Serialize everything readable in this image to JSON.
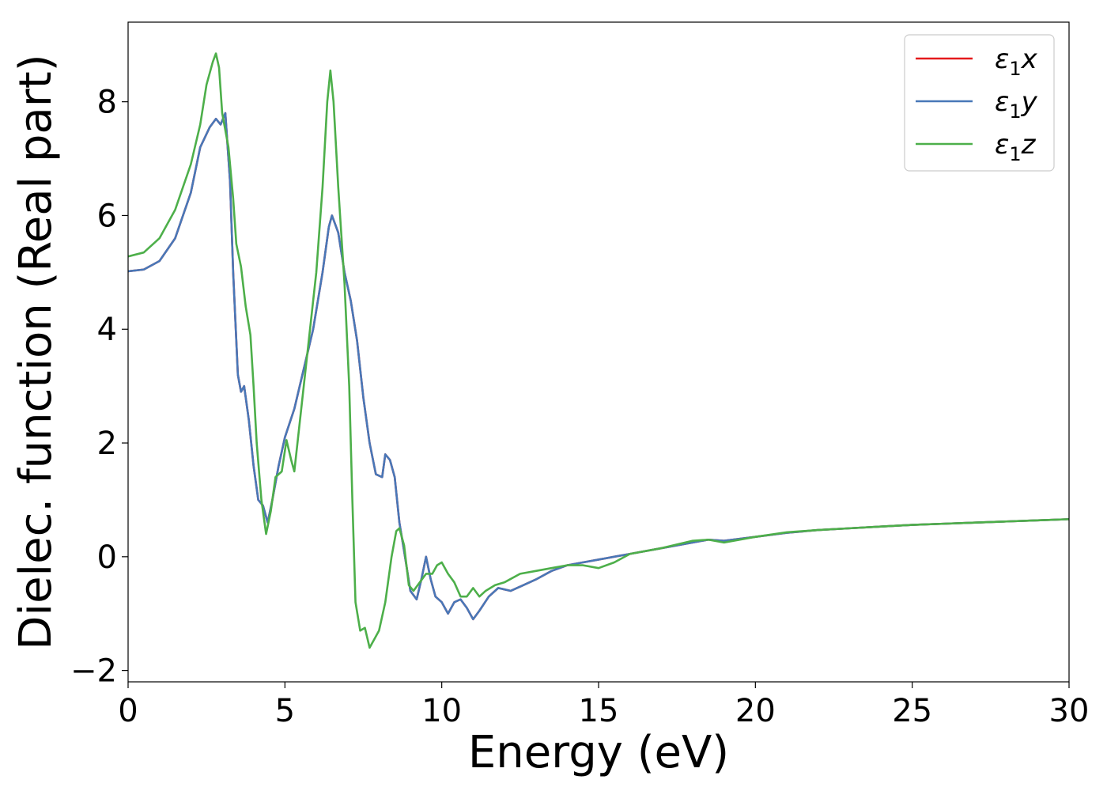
{
  "chart_data": {
    "type": "line",
    "title": "",
    "xlabel": "Energy (eV)",
    "ylabel": "Dielec. function (Real part)",
    "xlim": [
      0,
      30
    ],
    "ylim": [
      -2.2,
      9.4
    ],
    "xticks": [
      0,
      5,
      10,
      15,
      20,
      25,
      30
    ],
    "xtick_labels": [
      "0",
      "5",
      "10",
      "15",
      "20",
      "25",
      "30"
    ],
    "yticks": [
      -2,
      0,
      2,
      4,
      6,
      8
    ],
    "ytick_labels": [
      "−2",
      "0",
      "2",
      "4",
      "6",
      "8"
    ],
    "grid": false,
    "legend_position": "top-right",
    "series": [
      {
        "name": "ε1x",
        "legend": {
          "main": "ε",
          "sub": "1",
          "tail": "x"
        },
        "color": "#e41a1c",
        "points": [
          [
            0,
            5.02
          ],
          [
            0.5,
            5.05
          ],
          [
            1,
            5.2
          ],
          [
            1.5,
            5.6
          ],
          [
            2,
            6.4
          ],
          [
            2.3,
            7.2
          ],
          [
            2.6,
            7.55
          ],
          [
            2.8,
            7.7
          ],
          [
            2.95,
            7.6
          ],
          [
            3.1,
            7.8
          ],
          [
            3.25,
            6.6
          ],
          [
            3.35,
            5.0
          ],
          [
            3.5,
            3.2
          ],
          [
            3.6,
            2.9
          ],
          [
            3.7,
            3.0
          ],
          [
            3.85,
            2.4
          ],
          [
            4.0,
            1.6
          ],
          [
            4.15,
            1.0
          ],
          [
            4.3,
            0.9
          ],
          [
            4.45,
            0.6
          ],
          [
            4.6,
            1.0
          ],
          [
            4.8,
            1.6
          ],
          [
            5.0,
            2.1
          ],
          [
            5.3,
            2.6
          ],
          [
            5.6,
            3.3
          ],
          [
            5.9,
            4.0
          ],
          [
            6.2,
            5.0
          ],
          [
            6.4,
            5.8
          ],
          [
            6.5,
            6.0
          ],
          [
            6.7,
            5.7
          ],
          [
            6.9,
            5.0
          ],
          [
            7.1,
            4.5
          ],
          [
            7.3,
            3.8
          ],
          [
            7.5,
            2.8
          ],
          [
            7.7,
            2.0
          ],
          [
            7.9,
            1.45
          ],
          [
            8.1,
            1.4
          ],
          [
            8.2,
            1.8
          ],
          [
            8.35,
            1.7
          ],
          [
            8.5,
            1.4
          ],
          [
            8.65,
            0.6
          ],
          [
            8.8,
            0.1
          ],
          [
            9.0,
            -0.6
          ],
          [
            9.2,
            -0.75
          ],
          [
            9.35,
            -0.4
          ],
          [
            9.5,
            0.0
          ],
          [
            9.65,
            -0.4
          ],
          [
            9.8,
            -0.7
          ],
          [
            10.0,
            -0.8
          ],
          [
            10.2,
            -1.0
          ],
          [
            10.4,
            -0.8
          ],
          [
            10.6,
            -0.75
          ],
          [
            10.8,
            -0.9
          ],
          [
            11.0,
            -1.1
          ],
          [
            11.2,
            -0.95
          ],
          [
            11.5,
            -0.7
          ],
          [
            11.8,
            -0.55
          ],
          [
            12.2,
            -0.6
          ],
          [
            12.6,
            -0.5
          ],
          [
            13.0,
            -0.4
          ],
          [
            13.5,
            -0.25
          ],
          [
            14.0,
            -0.15
          ],
          [
            14.5,
            -0.1
          ],
          [
            15.0,
            -0.05
          ],
          [
            15.5,
            0.0
          ],
          [
            16.0,
            0.05
          ],
          [
            17.0,
            0.15
          ],
          [
            18.0,
            0.25
          ],
          [
            18.5,
            0.3
          ],
          [
            19.0,
            0.28
          ],
          [
            20.0,
            0.35
          ],
          [
            21.0,
            0.42
          ],
          [
            22.0,
            0.47
          ],
          [
            23.0,
            0.5
          ],
          [
            24.0,
            0.53
          ],
          [
            25.0,
            0.56
          ],
          [
            26.0,
            0.58
          ],
          [
            27.0,
            0.6
          ],
          [
            28.0,
            0.62
          ],
          [
            29.0,
            0.64
          ],
          [
            30.0,
            0.66
          ]
        ]
      },
      {
        "name": "ε1y",
        "legend": {
          "main": "ε",
          "sub": "1",
          "tail": "y"
        },
        "color": "#4878b8",
        "points": [
          [
            0,
            5.02
          ],
          [
            0.5,
            5.05
          ],
          [
            1,
            5.2
          ],
          [
            1.5,
            5.6
          ],
          [
            2,
            6.4
          ],
          [
            2.3,
            7.2
          ],
          [
            2.6,
            7.55
          ],
          [
            2.8,
            7.7
          ],
          [
            2.95,
            7.6
          ],
          [
            3.1,
            7.8
          ],
          [
            3.25,
            6.6
          ],
          [
            3.35,
            5.0
          ],
          [
            3.5,
            3.2
          ],
          [
            3.6,
            2.9
          ],
          [
            3.7,
            3.0
          ],
          [
            3.85,
            2.4
          ],
          [
            4.0,
            1.6
          ],
          [
            4.15,
            1.0
          ],
          [
            4.3,
            0.9
          ],
          [
            4.45,
            0.6
          ],
          [
            4.6,
            1.0
          ],
          [
            4.8,
            1.6
          ],
          [
            5.0,
            2.1
          ],
          [
            5.3,
            2.6
          ],
          [
            5.6,
            3.3
          ],
          [
            5.9,
            4.0
          ],
          [
            6.2,
            5.0
          ],
          [
            6.4,
            5.8
          ],
          [
            6.5,
            6.0
          ],
          [
            6.7,
            5.7
          ],
          [
            6.9,
            5.0
          ],
          [
            7.1,
            4.5
          ],
          [
            7.3,
            3.8
          ],
          [
            7.5,
            2.8
          ],
          [
            7.7,
            2.0
          ],
          [
            7.9,
            1.45
          ],
          [
            8.1,
            1.4
          ],
          [
            8.2,
            1.8
          ],
          [
            8.35,
            1.7
          ],
          [
            8.5,
            1.4
          ],
          [
            8.65,
            0.6
          ],
          [
            8.8,
            0.1
          ],
          [
            9.0,
            -0.6
          ],
          [
            9.2,
            -0.75
          ],
          [
            9.35,
            -0.4
          ],
          [
            9.5,
            0.0
          ],
          [
            9.65,
            -0.4
          ],
          [
            9.8,
            -0.7
          ],
          [
            10.0,
            -0.8
          ],
          [
            10.2,
            -1.0
          ],
          [
            10.4,
            -0.8
          ],
          [
            10.6,
            -0.75
          ],
          [
            10.8,
            -0.9
          ],
          [
            11.0,
            -1.1
          ],
          [
            11.2,
            -0.95
          ],
          [
            11.5,
            -0.7
          ],
          [
            11.8,
            -0.55
          ],
          [
            12.2,
            -0.6
          ],
          [
            12.6,
            -0.5
          ],
          [
            13.0,
            -0.4
          ],
          [
            13.5,
            -0.25
          ],
          [
            14.0,
            -0.15
          ],
          [
            14.5,
            -0.1
          ],
          [
            15.0,
            -0.05
          ],
          [
            15.5,
            0.0
          ],
          [
            16.0,
            0.05
          ],
          [
            17.0,
            0.15
          ],
          [
            18.0,
            0.25
          ],
          [
            18.5,
            0.3
          ],
          [
            19.0,
            0.28
          ],
          [
            20.0,
            0.35
          ],
          [
            21.0,
            0.42
          ],
          [
            22.0,
            0.47
          ],
          [
            23.0,
            0.5
          ],
          [
            24.0,
            0.53
          ],
          [
            25.0,
            0.56
          ],
          [
            26.0,
            0.58
          ],
          [
            27.0,
            0.6
          ],
          [
            28.0,
            0.62
          ],
          [
            29.0,
            0.64
          ],
          [
            30.0,
            0.66
          ]
        ]
      },
      {
        "name": "ε1z",
        "legend": {
          "main": "ε",
          "sub": "1",
          "tail": "z"
        },
        "color": "#4daf4a",
        "points": [
          [
            0,
            5.28
          ],
          [
            0.5,
            5.35
          ],
          [
            1,
            5.6
          ],
          [
            1.5,
            6.1
          ],
          [
            2,
            6.9
          ],
          [
            2.3,
            7.6
          ],
          [
            2.5,
            8.3
          ],
          [
            2.7,
            8.7
          ],
          [
            2.8,
            8.85
          ],
          [
            2.9,
            8.6
          ],
          [
            3.0,
            7.8
          ],
          [
            3.2,
            7.2
          ],
          [
            3.35,
            6.3
          ],
          [
            3.45,
            5.5
          ],
          [
            3.6,
            5.1
          ],
          [
            3.75,
            4.4
          ],
          [
            3.9,
            3.9
          ],
          [
            4.0,
            3.0
          ],
          [
            4.1,
            2.0
          ],
          [
            4.25,
            1.0
          ],
          [
            4.4,
            0.4
          ],
          [
            4.55,
            0.8
          ],
          [
            4.7,
            1.4
          ],
          [
            4.9,
            1.5
          ],
          [
            5.05,
            2.05
          ],
          [
            5.2,
            1.7
          ],
          [
            5.3,
            1.5
          ],
          [
            5.5,
            2.5
          ],
          [
            5.8,
            4.0
          ],
          [
            6.0,
            5.0
          ],
          [
            6.2,
            6.5
          ],
          [
            6.35,
            8.0
          ],
          [
            6.45,
            8.55
          ],
          [
            6.55,
            8.0
          ],
          [
            6.7,
            6.5
          ],
          [
            6.9,
            4.8
          ],
          [
            7.05,
            3.0
          ],
          [
            7.15,
            1.0
          ],
          [
            7.25,
            -0.8
          ],
          [
            7.4,
            -1.3
          ],
          [
            7.55,
            -1.25
          ],
          [
            7.7,
            -1.6
          ],
          [
            7.85,
            -1.45
          ],
          [
            8.0,
            -1.3
          ],
          [
            8.2,
            -0.8
          ],
          [
            8.4,
            0.0
          ],
          [
            8.55,
            0.45
          ],
          [
            8.65,
            0.5
          ],
          [
            8.8,
            0.2
          ],
          [
            8.95,
            -0.5
          ],
          [
            9.1,
            -0.6
          ],
          [
            9.3,
            -0.45
          ],
          [
            9.5,
            -0.3
          ],
          [
            9.7,
            -0.3
          ],
          [
            9.85,
            -0.15
          ],
          [
            10.0,
            -0.1
          ],
          [
            10.2,
            -0.3
          ],
          [
            10.4,
            -0.45
          ],
          [
            10.6,
            -0.7
          ],
          [
            10.8,
            -0.7
          ],
          [
            11.0,
            -0.55
          ],
          [
            11.2,
            -0.7
          ],
          [
            11.4,
            -0.6
          ],
          [
            11.7,
            -0.5
          ],
          [
            12.0,
            -0.45
          ],
          [
            12.5,
            -0.3
          ],
          [
            13.0,
            -0.25
          ],
          [
            13.5,
            -0.2
          ],
          [
            14.0,
            -0.15
          ],
          [
            14.5,
            -0.15
          ],
          [
            15.0,
            -0.2
          ],
          [
            15.5,
            -0.1
          ],
          [
            16.0,
            0.05
          ],
          [
            17.0,
            0.15
          ],
          [
            18.0,
            0.28
          ],
          [
            18.5,
            0.3
          ],
          [
            19.0,
            0.25
          ],
          [
            20.0,
            0.35
          ],
          [
            21.0,
            0.43
          ],
          [
            22.0,
            0.47
          ],
          [
            23.0,
            0.5
          ],
          [
            24.0,
            0.53
          ],
          [
            25.0,
            0.56
          ],
          [
            26.0,
            0.58
          ],
          [
            27.0,
            0.6
          ],
          [
            28.0,
            0.62
          ],
          [
            29.0,
            0.64
          ],
          [
            30.0,
            0.66
          ]
        ]
      }
    ]
  }
}
